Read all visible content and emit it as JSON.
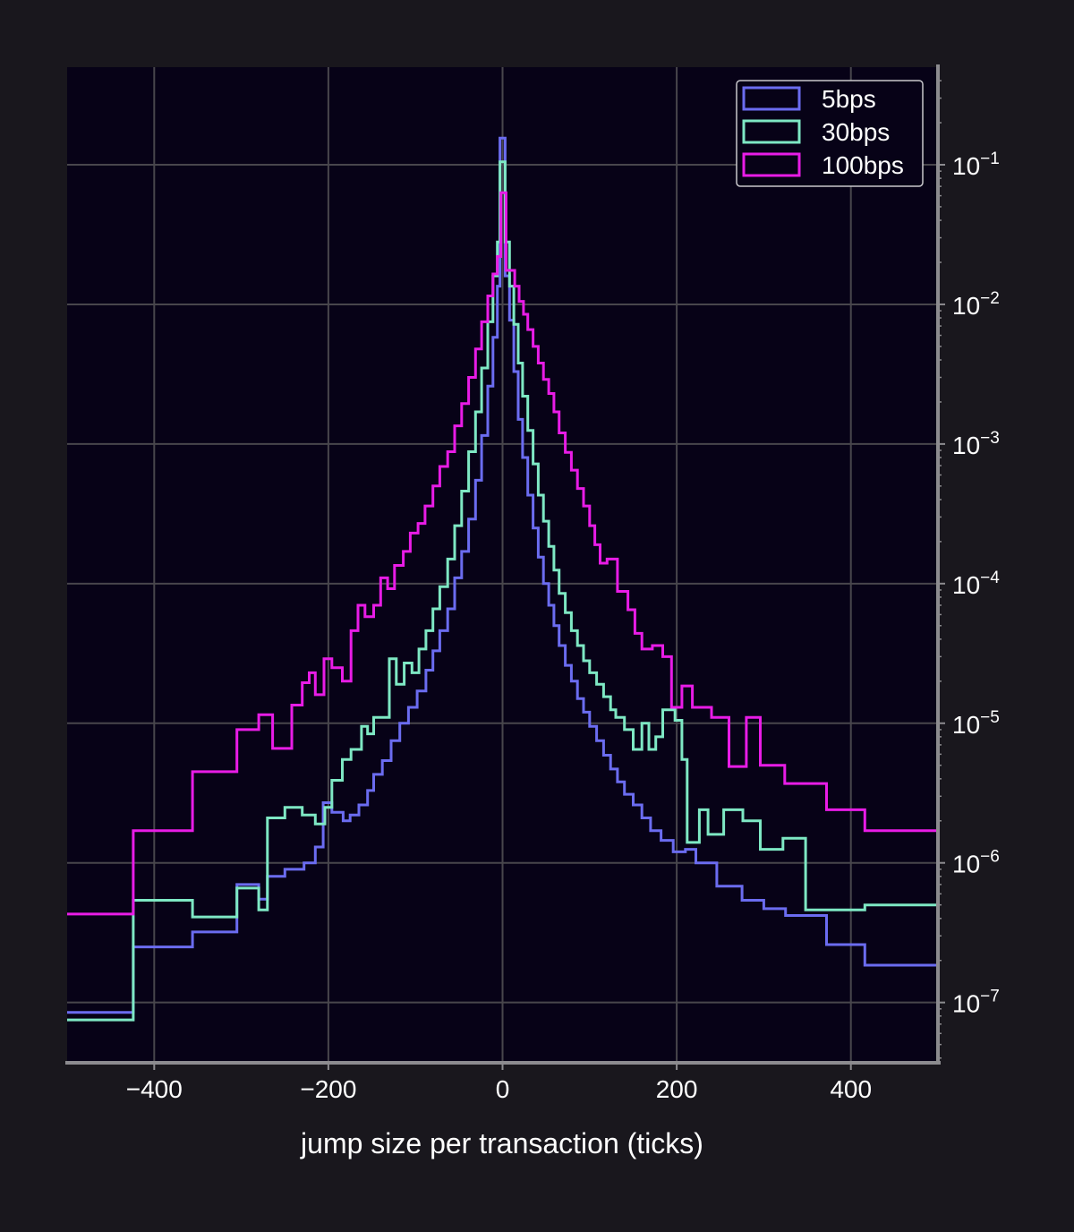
{
  "chart_data": {
    "type": "histogram-step",
    "xlabel": "jump size per transaction (ticks)",
    "ylabel": "",
    "xlim": [
      -500,
      500
    ],
    "ylim": [
      3.7e-08,
      0.5
    ],
    "yscale": "log",
    "yaxis_position": "right",
    "grid": true,
    "legend_position": "top-right",
    "x_ticks": [
      -400,
      -200,
      0,
      200,
      400
    ],
    "x_tick_labels": [
      "−400",
      "−200",
      "0",
      "200",
      "400"
    ],
    "y_ticks": [
      1e-07,
      1e-06,
      1e-05,
      0.0001,
      0.001,
      0.01,
      0.1
    ],
    "y_tick_labels": [
      {
        "base": "10",
        "exp": "−7"
      },
      {
        "base": "10",
        "exp": "−6"
      },
      {
        "base": "10",
        "exp": "−5"
      },
      {
        "base": "10",
        "exp": "−4"
      },
      {
        "base": "10",
        "exp": "−3"
      },
      {
        "base": "10",
        "exp": "−2"
      },
      {
        "base": "10",
        "exp": "−1"
      }
    ],
    "series": [
      {
        "name": "5bps",
        "color": "#6b6cf0",
        "points": [
          [
            -500,
            8.5e-08
          ],
          [
            -424,
            2.5e-07
          ],
          [
            -356,
            3.2e-07
          ],
          [
            -305,
            7e-07
          ],
          [
            -280,
            5.5e-07
          ],
          [
            -270,
            8e-07
          ],
          [
            -250,
            9e-07
          ],
          [
            -228,
            1e-06
          ],
          [
            -215,
            1.3e-06
          ],
          [
            -206,
            2.7e-06
          ],
          [
            -196,
            2.3e-06
          ],
          [
            -183,
            2e-06
          ],
          [
            -175,
            2.2e-06
          ],
          [
            -165,
            2.6e-06
          ],
          [
            -155,
            3.3e-06
          ],
          [
            -148,
            4.3e-06
          ],
          [
            -138,
            5.4e-06
          ],
          [
            -128,
            7.5e-06
          ],
          [
            -118,
            1e-05
          ],
          [
            -108,
            1.3e-05
          ],
          [
            -98,
            1.7e-05
          ],
          [
            -88,
            2.4e-05
          ],
          [
            -80,
            3.3e-05
          ],
          [
            -72,
            4.6e-05
          ],
          [
            -63,
            6.6e-05
          ],
          [
            -55,
            0.00011
          ],
          [
            -47,
            0.00017
          ],
          [
            -39,
            0.00029
          ],
          [
            -31,
            0.00055
          ],
          [
            -24,
            0.00115
          ],
          [
            -17,
            0.0026
          ],
          [
            -11,
            0.0058
          ],
          [
            -6,
            0.0135
          ],
          [
            -3,
            0.155
          ],
          [
            3,
            0.016
          ],
          [
            8,
            0.0077
          ],
          [
            13,
            0.0033
          ],
          [
            18,
            0.0015
          ],
          [
            23,
            0.0008
          ],
          [
            29,
            0.00043
          ],
          [
            35,
            0.00025
          ],
          [
            41,
            0.000155
          ],
          [
            47,
            0.0001
          ],
          [
            53,
            7e-05
          ],
          [
            59,
            5e-05
          ],
          [
            65,
            3.6e-05
          ],
          [
            72,
            2.6e-05
          ],
          [
            79,
            2e-05
          ],
          [
            86,
            1.5e-05
          ],
          [
            93,
            1.2e-05
          ],
          [
            100,
            9.5e-06
          ],
          [
            108,
            7.5e-06
          ],
          [
            116,
            5.9e-06
          ],
          [
            124,
            4.7e-06
          ],
          [
            132,
            3.8e-06
          ],
          [
            140,
            3.1e-06
          ],
          [
            150,
            2.6e-06
          ],
          [
            160,
            2.1e-06
          ],
          [
            170,
            1.7e-06
          ],
          [
            182,
            1.45e-06
          ],
          [
            196,
            1.2e-06
          ],
          [
            210,
            1.25e-06
          ],
          [
            222,
            1e-06
          ],
          [
            246,
            6.8e-07
          ],
          [
            275,
            5.4e-07
          ],
          [
            300,
            4.7e-07
          ],
          [
            325,
            4.2e-07
          ],
          [
            372,
            2.6e-07
          ],
          [
            416,
            1.85e-07
          ],
          [
            500,
            1.85e-07
          ]
        ]
      },
      {
        "name": "30bps",
        "color": "#7ee8c4",
        "points": [
          [
            -500,
            7.5e-08
          ],
          [
            -424,
            5.4e-07
          ],
          [
            -356,
            4.1e-07
          ],
          [
            -305,
            6.6e-07
          ],
          [
            -280,
            4.6e-07
          ],
          [
            -270,
            2.1e-06
          ],
          [
            -250,
            2.5e-06
          ],
          [
            -230,
            2.2e-06
          ],
          [
            -215,
            1.9e-06
          ],
          [
            -204,
            2.5e-06
          ],
          [
            -196,
            3.9e-06
          ],
          [
            -184,
            5.5e-06
          ],
          [
            -174,
            6.5e-06
          ],
          [
            -162,
            9.5e-06
          ],
          [
            -155,
            8.4e-06
          ],
          [
            -148,
            1.1e-05
          ],
          [
            -138,
            1.1e-05
          ],
          [
            -130,
            2.9e-05
          ],
          [
            -122,
            1.9e-05
          ],
          [
            -113,
            2.7e-05
          ],
          [
            -104,
            2.3e-05
          ],
          [
            -96,
            3.4e-05
          ],
          [
            -88,
            4.6e-05
          ],
          [
            -80,
            6.6e-05
          ],
          [
            -72,
            9.5e-05
          ],
          [
            -63,
            0.00015
          ],
          [
            -55,
            0.00026
          ],
          [
            -47,
            0.00046
          ],
          [
            -39,
            0.00088
          ],
          [
            -31,
            0.0017
          ],
          [
            -24,
            0.0035
          ],
          [
            -17,
            0.0075
          ],
          [
            -11,
            0.016
          ],
          [
            -6,
            0.028
          ],
          [
            -3,
            0.105
          ],
          [
            3,
            0.028
          ],
          [
            8,
            0.0135
          ],
          [
            13,
            0.0072
          ],
          [
            18,
            0.0038
          ],
          [
            23,
            0.0022
          ],
          [
            29,
            0.00125
          ],
          [
            35,
            0.00072
          ],
          [
            41,
            0.00043
          ],
          [
            47,
            0.00028
          ],
          [
            53,
            0.000185
          ],
          [
            59,
            0.000125
          ],
          [
            65,
            8.5e-05
          ],
          [
            72,
            6.2e-05
          ],
          [
            79,
            4.6e-05
          ],
          [
            86,
            3.6e-05
          ],
          [
            93,
            2.8e-05
          ],
          [
            100,
            2.3e-05
          ],
          [
            108,
            1.9e-05
          ],
          [
            116,
            1.55e-05
          ],
          [
            124,
            1.25e-05
          ],
          [
            130,
            1.1e-05
          ],
          [
            140,
            9e-06
          ],
          [
            150,
            6.5e-06
          ],
          [
            160,
            1e-05
          ],
          [
            168,
            6.5e-06
          ],
          [
            176,
            8e-06
          ],
          [
            184,
            1.25e-05
          ],
          [
            198,
            1.05e-05
          ],
          [
            206,
            5.5e-06
          ],
          [
            212,
            1.4e-06
          ],
          [
            226,
            2.4e-06
          ],
          [
            236,
            1.6e-06
          ],
          [
            254,
            2.4e-06
          ],
          [
            276,
            2e-06
          ],
          [
            296,
            1.25e-06
          ],
          [
            322,
            1.5e-06
          ],
          [
            348,
            4.6e-07
          ],
          [
            416,
            5e-07
          ],
          [
            500,
            2e-07
          ]
        ]
      },
      {
        "name": "100bps",
        "color": "#e81ce6",
        "points": [
          [
            -500,
            4.3e-07
          ],
          [
            -424,
            1.7e-06
          ],
          [
            -356,
            4.5e-06
          ],
          [
            -305,
            9e-06
          ],
          [
            -280,
            1.15e-05
          ],
          [
            -264,
            6.6e-06
          ],
          [
            -242,
            1.35e-05
          ],
          [
            -230,
            1.95e-05
          ],
          [
            -222,
            2.3e-05
          ],
          [
            -215,
            1.6e-05
          ],
          [
            -205,
            2.9e-05
          ],
          [
            -196,
            2.5e-05
          ],
          [
            -184,
            2e-05
          ],
          [
            -174,
            4.6e-05
          ],
          [
            -166,
            7e-05
          ],
          [
            -158,
            5.8e-05
          ],
          [
            -148,
            7e-05
          ],
          [
            -140,
            0.00011
          ],
          [
            -132,
            9.2e-05
          ],
          [
            -124,
            0.000135
          ],
          [
            -114,
            0.00017
          ],
          [
            -106,
            0.00023
          ],
          [
            -97,
            0.00027
          ],
          [
            -89,
            0.00036
          ],
          [
            -80,
            0.0005
          ],
          [
            -72,
            0.00069
          ],
          [
            -63,
            0.00088
          ],
          [
            -55,
            0.00135
          ],
          [
            -47,
            0.00195
          ],
          [
            -39,
            0.003
          ],
          [
            -31,
            0.0048
          ],
          [
            -24,
            0.0075
          ],
          [
            -17,
            0.0115
          ],
          [
            -11,
            0.0165
          ],
          [
            -6,
            0.022
          ],
          [
            -2,
            0.063
          ],
          [
            4,
            0.0175
          ],
          [
            9,
            0.0175
          ],
          [
            14,
            0.0135
          ],
          [
            19,
            0.0105
          ],
          [
            24,
            0.0085
          ],
          [
            29,
            0.0066
          ],
          [
            35,
            0.005
          ],
          [
            41,
            0.0038
          ],
          [
            47,
            0.0029
          ],
          [
            53,
            0.0023
          ],
          [
            59,
            0.0017
          ],
          [
            65,
            0.0012
          ],
          [
            72,
            0.00087
          ],
          [
            79,
            0.00065
          ],
          [
            86,
            0.00048
          ],
          [
            93,
            0.00036
          ],
          [
            100,
            0.00026
          ],
          [
            106,
            0.00019
          ],
          [
            112,
            0.00014
          ],
          [
            120,
            0.00015
          ],
          [
            132,
            8.8e-05
          ],
          [
            144,
            6.5e-05
          ],
          [
            152,
            4.4e-05
          ],
          [
            160,
            3.4e-05
          ],
          [
            172,
            3.6e-05
          ],
          [
            184,
            3e-05
          ],
          [
            194,
            1.3e-05
          ],
          [
            206,
            1.85e-05
          ],
          [
            218,
            1.3e-05
          ],
          [
            240,
            1.1e-05
          ],
          [
            260,
            4.9e-06
          ],
          [
            280,
            1.1e-05
          ],
          [
            296,
            5e-06
          ],
          [
            324,
            3.7e-06
          ],
          [
            372,
            2.4e-06
          ],
          [
            416,
            1.7e-06
          ],
          [
            500,
            1.7e-06
          ]
        ]
      }
    ]
  }
}
